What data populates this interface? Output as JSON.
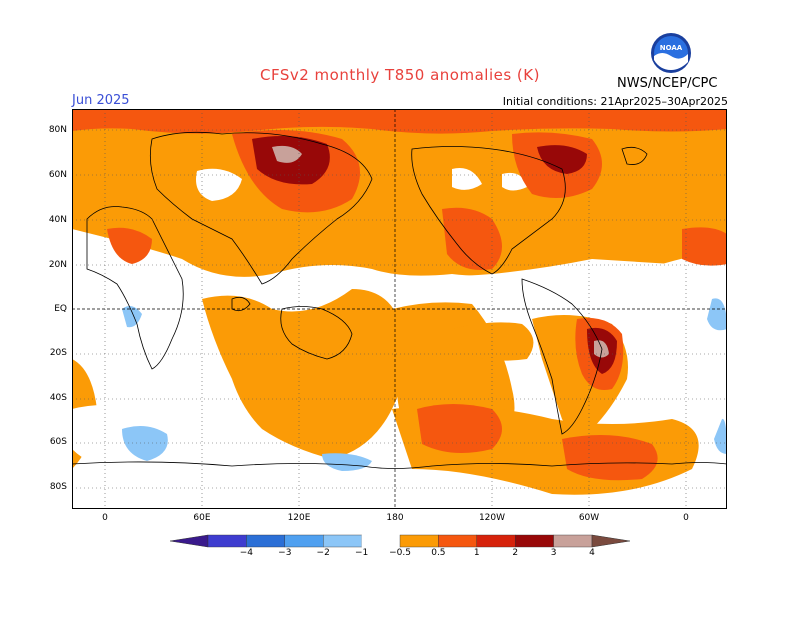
{
  "title": "CFSv2 monthly T850 anomalies (K)",
  "month": "Jun 2025",
  "source": "NWS/NCEP/CPC",
  "initial_conditions": "Initial conditions: 21Apr2025–30Apr2025",
  "logo_text": "NOAA",
  "lat_labels": [
    "80N",
    "60N",
    "40N",
    "20N",
    "EQ",
    "20S",
    "40S",
    "60S",
    "80S"
  ],
  "lon_labels": [
    "0",
    "60E",
    "120E",
    "180",
    "120W",
    "60W",
    "0"
  ],
  "colorbar": {
    "labels": [
      "−4",
      "−3",
      "−2",
      "−1",
      "−0.5",
      "0.5",
      "1",
      "2",
      "3",
      "4"
    ],
    "colors": [
      "#3a1a8c",
      "#3e3ccf",
      "#2b6fd6",
      "#4fa0f0",
      "#8cc6f7",
      "#ffffff",
      "#fb9b06",
      "#f5570f",
      "#d6220b",
      "#980808",
      "#c8a19a",
      "#7a4a3e"
    ]
  }
}
